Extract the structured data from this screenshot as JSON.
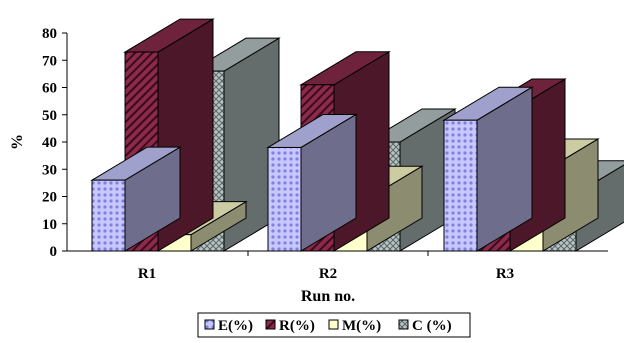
{
  "chart_data": {
    "type": "bar",
    "title": "",
    "xlabel": "Run no.",
    "ylabel": "%",
    "ylim": [
      0,
      80
    ],
    "yticks": [
      0,
      10,
      20,
      30,
      40,
      50,
      60,
      70,
      80
    ],
    "categories": [
      "R1",
      "R2",
      "R3"
    ],
    "series": [
      {
        "name": "E(%)",
        "values": [
          26,
          38,
          48
        ],
        "color": "#c8c8ff"
      },
      {
        "name": "R(%)",
        "values": [
          73,
          61,
          51
        ],
        "color": "#8b2a4a"
      },
      {
        "name": "M(%)",
        "values": [
          6,
          19,
          29
        ],
        "color": "#ffffcc"
      },
      {
        "name": "C (%)",
        "values": [
          66,
          40,
          21
        ],
        "color": "#b8c4c4"
      }
    ],
    "grid": false,
    "legend": "bottom",
    "style": "3d-clustered-column"
  }
}
